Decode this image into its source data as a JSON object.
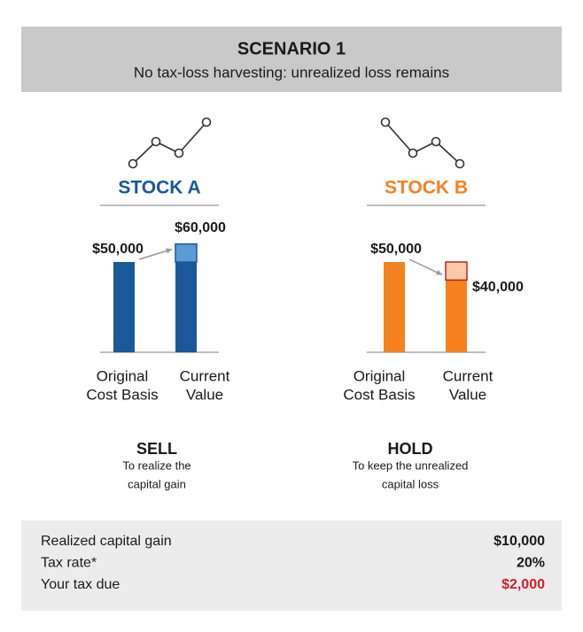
{
  "header": {
    "title": "SCENARIO 1",
    "subtitle": "No tax-loss harvesting: unrealized loss remains"
  },
  "stocks": [
    {
      "name": "STOCK A",
      "color": "#1a5899",
      "accent": "#5b9bd5",
      "accent_border": "#1a5899",
      "bars": [
        {
          "label": [
            "Original",
            "Cost Basis"
          ],
          "value": 50000,
          "value_label": "$50,000"
        },
        {
          "label": [
            "Current",
            "Value"
          ],
          "value": 60000,
          "value_label": "$60,000"
        }
      ],
      "action": "SELL",
      "action_note": [
        "To realize the",
        "capital gain"
      ]
    },
    {
      "name": "STOCK B",
      "color": "#f5821f",
      "accent": "#fbc9a4",
      "accent_border": "#b0282e",
      "bars": [
        {
          "label": [
            "Original",
            "Cost Basis"
          ],
          "value": 50000,
          "value_label": "$50,000"
        },
        {
          "label": [
            "Current",
            "Value"
          ],
          "value": 40000,
          "value_label": "$40,000"
        }
      ],
      "action": "HOLD",
      "action_note": [
        "To keep the unrealized",
        "capital loss"
      ]
    }
  ],
  "summary": {
    "rows": [
      {
        "label": "Realized capital gain",
        "value": "$10,000"
      },
      {
        "label": "Tax rate*",
        "value": "20%"
      },
      {
        "label": "Your tax due",
        "value": "$2,000",
        "color": "#d0202a"
      }
    ]
  }
}
